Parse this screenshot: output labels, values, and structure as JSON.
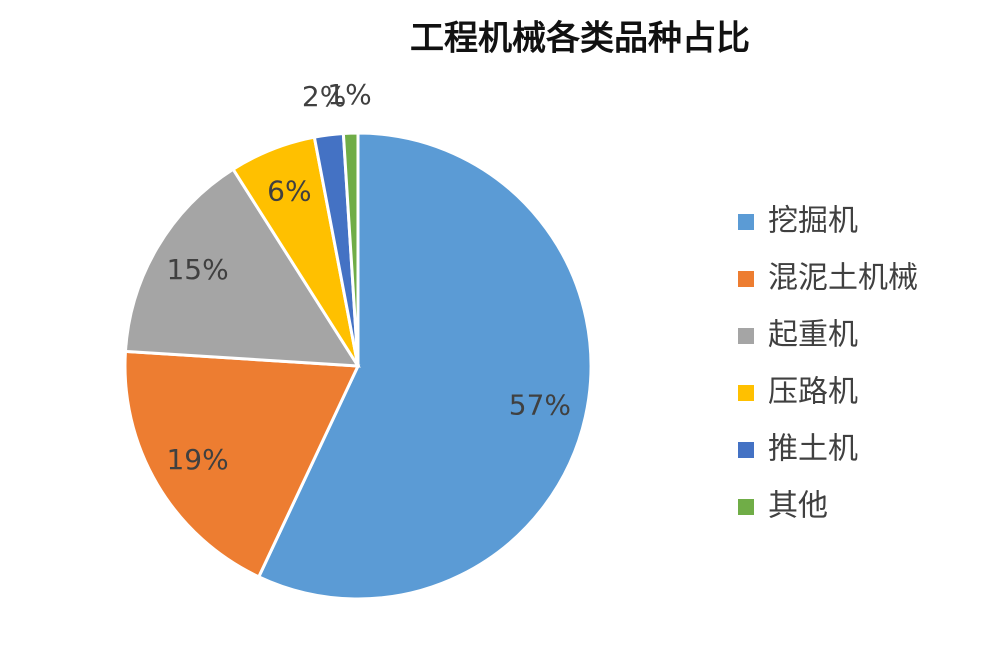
{
  "chart_data": {
    "type": "pie",
    "title": "工程机械各类品种占比",
    "categories": [
      "挖掘机",
      "混泥土机械",
      "起重机",
      "压路机",
      "推土机",
      "其他"
    ],
    "values": [
      57,
      19,
      15,
      6,
      2,
      1
    ],
    "value_labels": [
      "57%",
      "19%",
      "15%",
      "6%",
      "2%",
      "1%"
    ],
    "colors": [
      "#5b9bd5",
      "#ed7d31",
      "#a5a5a5",
      "#ffc000",
      "#4472c4",
      "#70ad47"
    ],
    "legend": "right"
  }
}
